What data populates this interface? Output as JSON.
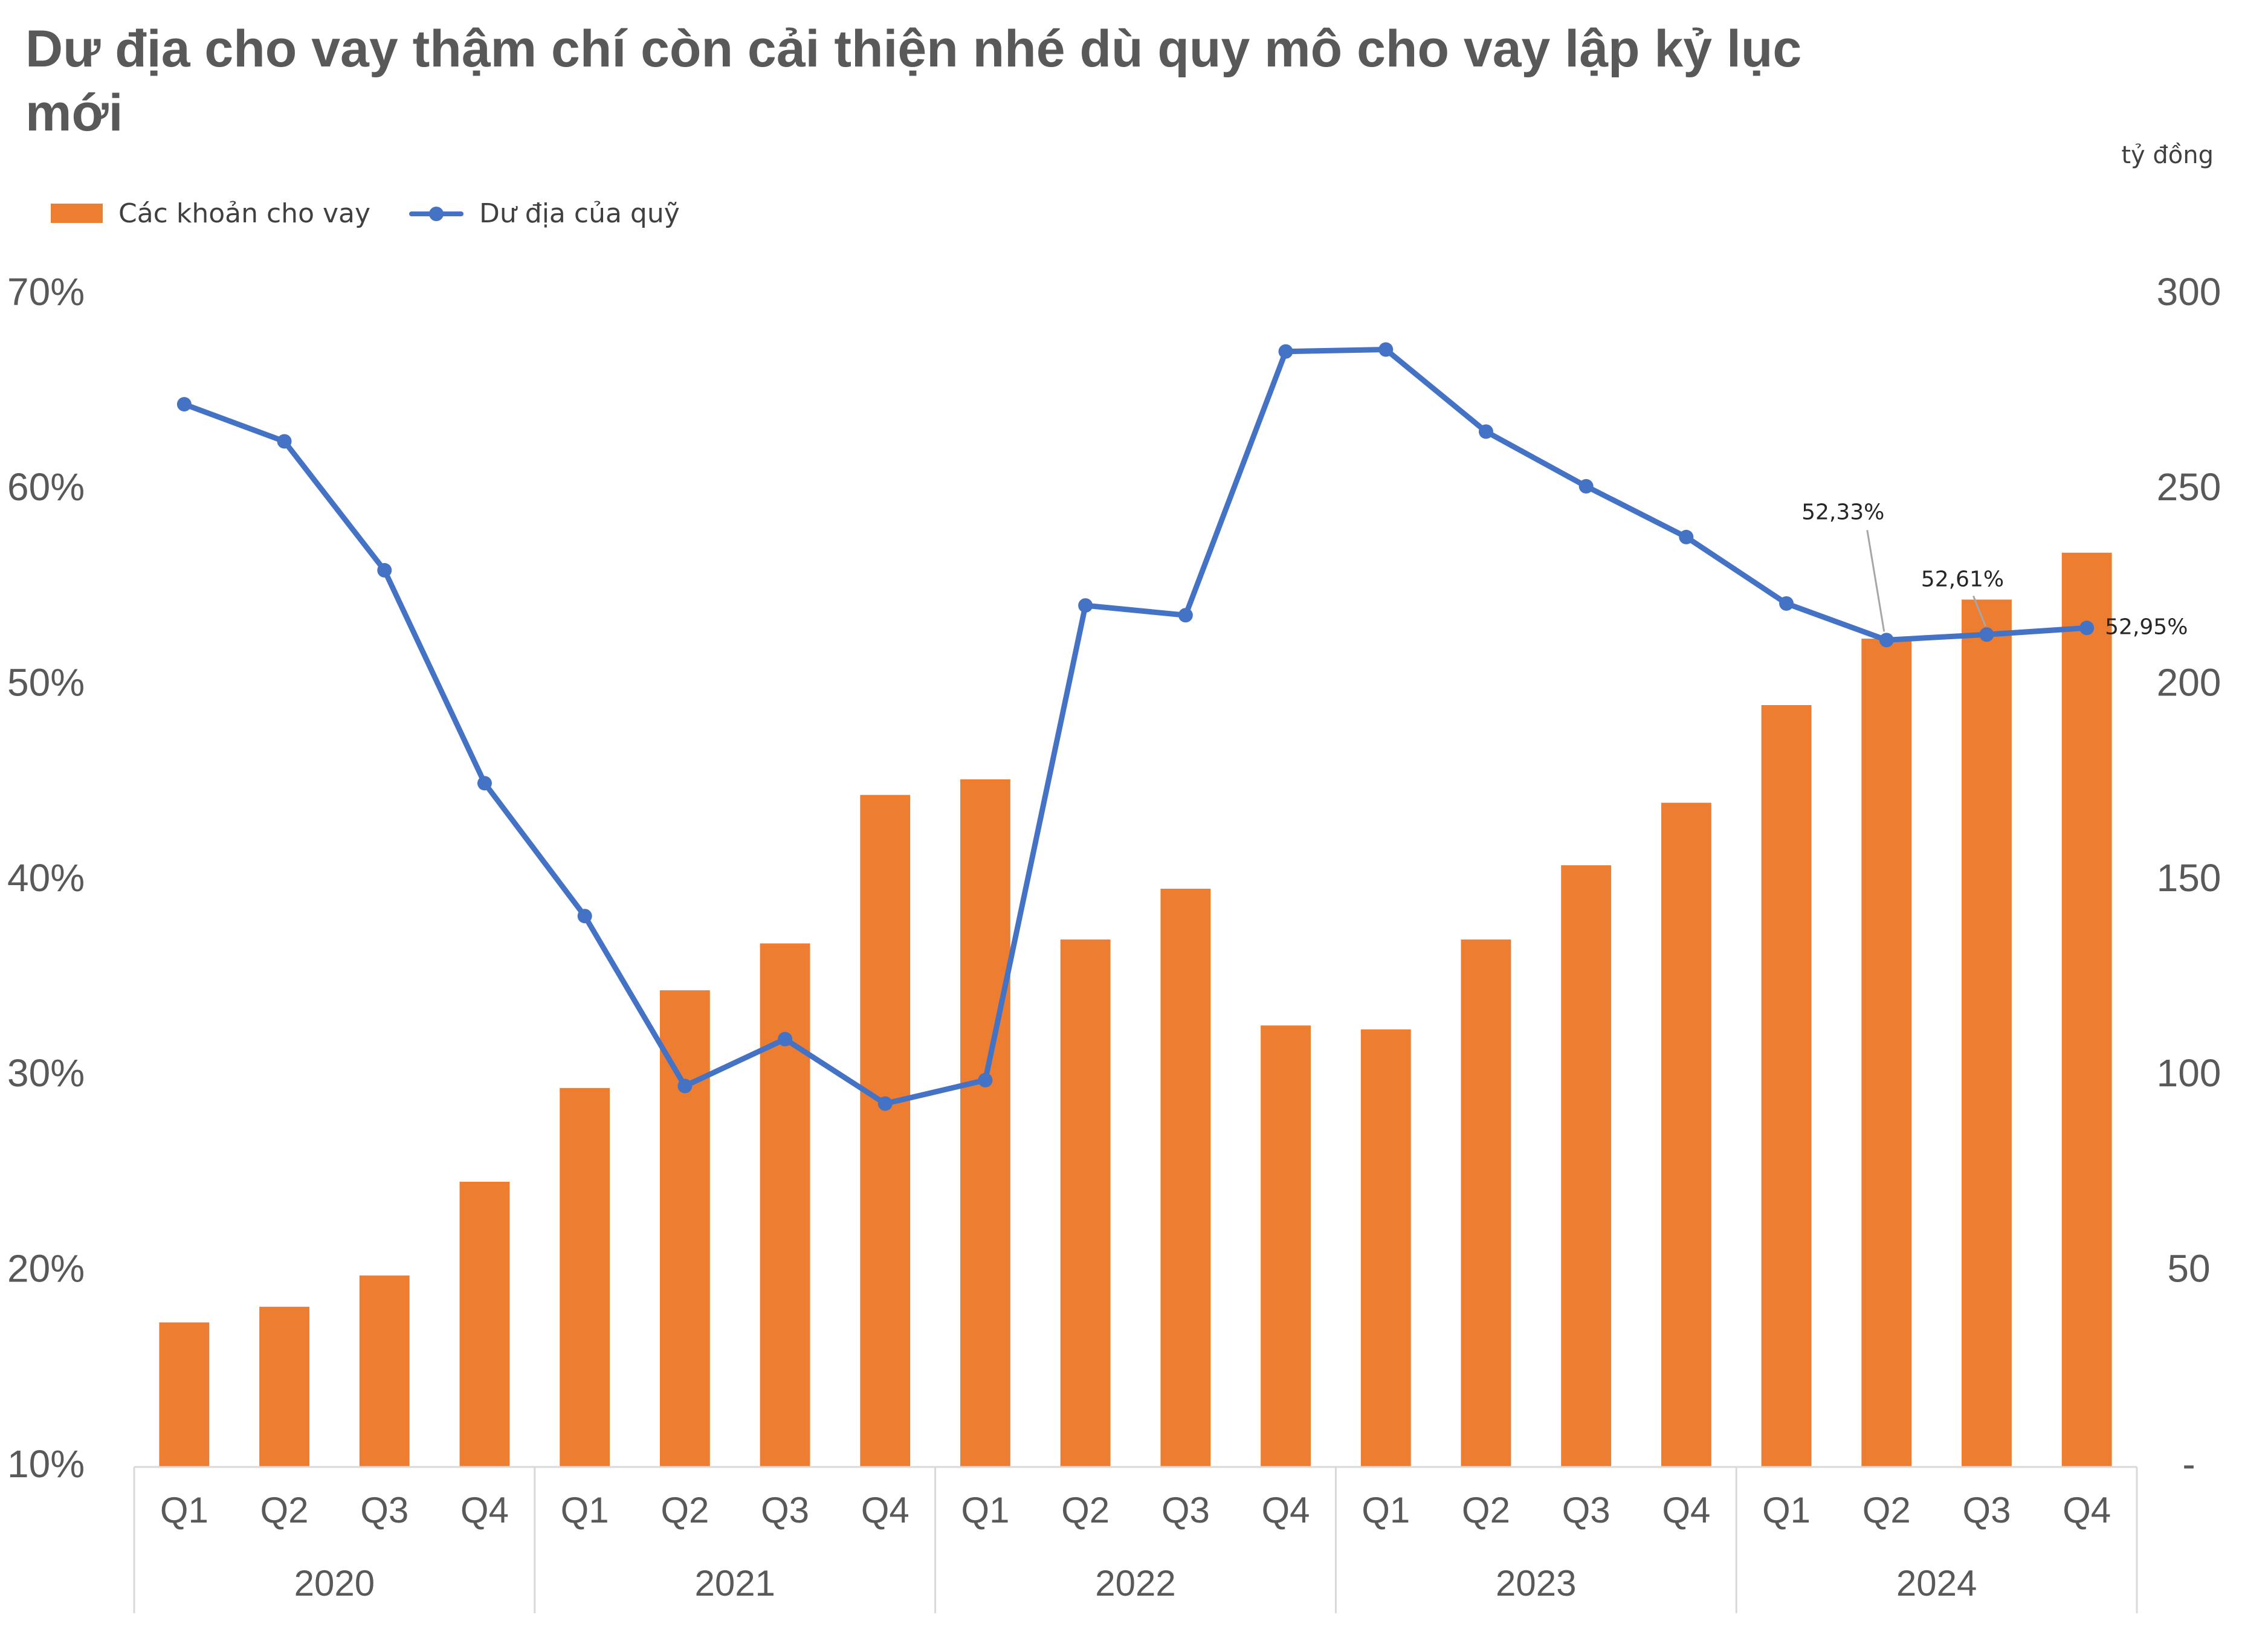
{
  "title": "Dư địa cho vay thậm chí còn cải thiện nhé dù quy mô cho vay lập kỷ lục mới",
  "right_axis_unit": "tỷ đồng",
  "colors": {
    "bar": "#ED7D31",
    "line": "#4472C4",
    "text": "#595959"
  },
  "chart_data": {
    "type": "bar+line",
    "title": "Dư địa cho vay thậm chí còn cải thiện nhé dù quy mô cho vay lập kỷ lục mới",
    "categories": [
      "Q1",
      "Q2",
      "Q3",
      "Q4",
      "Q1",
      "Q2",
      "Q3",
      "Q4",
      "Q1",
      "Q2",
      "Q3",
      "Q4",
      "Q1",
      "Q2",
      "Q3",
      "Q4",
      "Q1",
      "Q2",
      "Q3",
      "Q4"
    ],
    "groups": [
      {
        "label": "2020",
        "count": 4
      },
      {
        "label": "2021",
        "count": 4
      },
      {
        "label": "2022",
        "count": 4
      },
      {
        "label": "2023",
        "count": 4
      },
      {
        "label": "2024",
        "count": 4
      }
    ],
    "series": [
      {
        "name": "Các khoản cho vay",
        "type": "bar",
        "axis": "right",
        "values": [
          37,
          41,
          49,
          73,
          97,
          122,
          134,
          172,
          176,
          135,
          148,
          113,
          112,
          135,
          154,
          170,
          195,
          212,
          222,
          234
        ]
      },
      {
        "name": "Dư địa của quỹ",
        "type": "line",
        "axis": "left",
        "values": [
          64.4,
          62.5,
          55.9,
          45.0,
          38.2,
          29.5,
          31.9,
          28.6,
          29.8,
          54.1,
          53.6,
          67.1,
          67.2,
          63.0,
          60.2,
          57.6,
          54.2,
          52.33,
          52.61,
          52.95
        ]
      }
    ],
    "annotations": [
      {
        "index": 17,
        "text": "52,33%"
      },
      {
        "index": 18,
        "text": "52,61%"
      },
      {
        "index": 19,
        "text": "52,95%"
      }
    ],
    "left_axis": {
      "min": 10,
      "max": 70,
      "ticks": [
        "70%",
        "60%",
        "50%",
        "40%",
        "30%",
        "20%",
        "10%"
      ]
    },
    "right_axis": {
      "min": 0,
      "max": 300,
      "ticks": [
        "300",
        "250",
        "200",
        "150",
        "100",
        "50",
        "-"
      ]
    },
    "grid": false,
    "legend_position": "top-left"
  }
}
